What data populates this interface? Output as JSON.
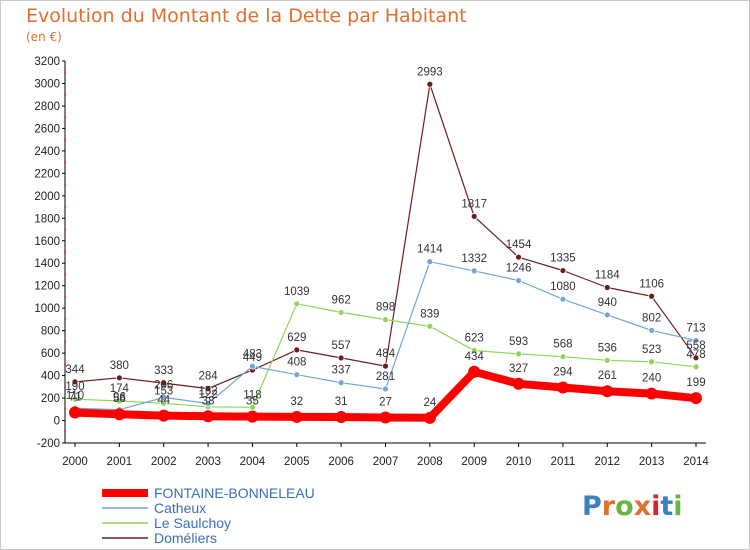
{
  "title": "Evolution du Montant de la Dette par Habitant",
  "subtitle": "(en €)",
  "logo": {
    "text": "Proxiti",
    "letter_colors": [
      "#3a7fc0",
      "#e0702f",
      "#6cb33f",
      "#e0702f",
      "#d8252b",
      "#3a7fc0",
      "#6cb33f"
    ]
  },
  "chart_data": {
    "type": "line",
    "x": [
      "2000",
      "2001",
      "2002",
      "2003",
      "2004",
      "2005",
      "2006",
      "2007",
      "2008",
      "2009",
      "2010",
      "2011",
      "2012",
      "2013",
      "2014"
    ],
    "ylim": [
      -200,
      3200
    ],
    "yticks": [
      -200,
      0,
      200,
      400,
      600,
      800,
      1000,
      1200,
      1400,
      1600,
      1800,
      2000,
      2200,
      2400,
      2600,
      2800,
      3000,
      3200
    ],
    "grid": false,
    "legend": "bottom-left",
    "series": [
      {
        "name": "FONTAINE-BONNELEAU",
        "color": "#ff0000",
        "values": [
          71,
          56,
          44,
          38,
          35,
          32,
          31,
          27,
          24,
          434,
          327,
          294,
          261,
          240,
          199
        ]
      },
      {
        "name": "Catheux",
        "color": "#6fa6d8",
        "values": [
          110,
          96,
          206,
          152,
          483,
          408,
          337,
          281,
          1414,
          1332,
          1246,
          1080,
          940,
          802,
          713
        ]
      },
      {
        "name": "Le Saulchoy",
        "color": "#8ed657",
        "values": [
          190,
          174,
          153,
          122,
          118,
          1039,
          962,
          898,
          839,
          623,
          593,
          568,
          536,
          523,
          478
        ]
      },
      {
        "name": "Doméliers",
        "color": "#6b1d1d",
        "values": [
          344,
          380,
          333,
          284,
          449,
          629,
          557,
          484,
          2993,
          1817,
          1454,
          1335,
          1184,
          1106,
          558
        ]
      }
    ]
  }
}
